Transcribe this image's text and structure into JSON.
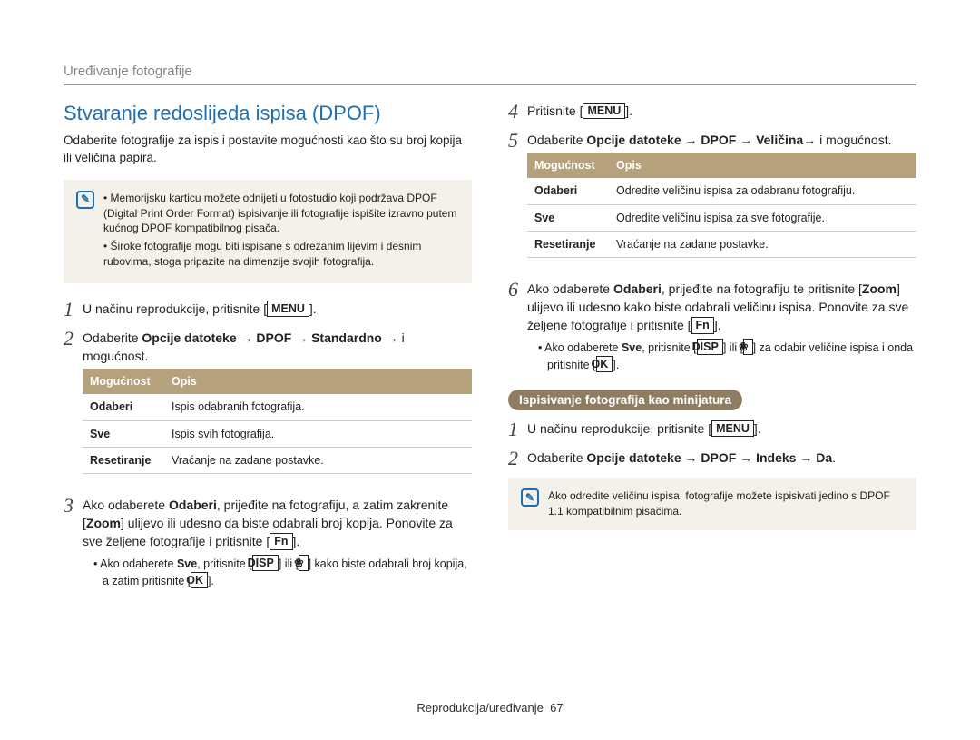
{
  "breadcrumb": "Uređivanje fotografije",
  "title": "Stvaranje redoslijeda ispisa (DPOF)",
  "intro": "Odaberite fotografije za ispis i postavite mogućnosti kao što su broj kopija ili veličina papira.",
  "note1": {
    "items": [
      "Memorijsku karticu možete odnijeti u fotostudio koji podržava DPOF (Digital Print Order Format) ispisivanje ili fotografije ispišite izravno putem kućnog DPOF kompatibilnog pisača.",
      "Široke fotografije mogu biti ispisane s odrezanim lijevim i desnim rubovima, stoga pripazite na dimenzije svojih fotografija."
    ]
  },
  "labels": {
    "menu": "MENU",
    "fn": "Fn",
    "disp": "DISP",
    "ok": "OK",
    "flower": "❀"
  },
  "table_headers": {
    "col1": "Mogućnost",
    "col2": "Opis"
  },
  "left": {
    "step1_a": "U načinu reprodukcije, pritisnite [",
    "step1_b": "].",
    "step2_a": "Odaberite ",
    "step2_bold": "Opcije datoteke → DPOF → Standardno →",
    "step2_b": " i mogućnost.",
    "table": {
      "rows": [
        [
          "Odaberi",
          "Ispis odabranih fotografija."
        ],
        [
          "Sve",
          "Ispis svih fotografija."
        ],
        [
          "Resetiranje",
          "Vraćanje na zadane postavke."
        ]
      ]
    },
    "step3_a": "Ako odaberete ",
    "step3_b1": "Odaberi",
    "step3_c": ", prijeđite na fotografiju, a zatim zakrenite [",
    "step3_b2": "Zoom",
    "step3_d": "] ulijevo ili udesno da biste odabrali broj kopija. Ponovite za sve željene fotografije i pritisnite [",
    "step3_e": "].",
    "step3_sub_a": "Ako odaberete ",
    "step3_sub_b": "Sve",
    "step3_sub_c": ", pritisnite [",
    "step3_sub_d": "] ili [",
    "step3_sub_e": "] kako biste odabrali broj kopija, a zatim pritisnite [",
    "step3_sub_f": "]."
  },
  "right": {
    "step4_a": "Pritisnite [",
    "step4_b": "].",
    "step5_a": "Odaberite ",
    "step5_bold": "Opcije datoteke → DPOF → Veličina→",
    "step5_b": " i mogućnost.",
    "table": {
      "rows": [
        [
          "Odaberi",
          "Odredite veličinu ispisa za odabranu fotografiju."
        ],
        [
          "Sve",
          "Odredite veličinu ispisa za sve fotografije."
        ],
        [
          "Resetiranje",
          "Vraćanje na zadane postavke."
        ]
      ]
    },
    "step6_a": "Ako odaberete ",
    "step6_b1": "Odaberi",
    "step6_c": ", prijeđite na fotografiju te pritisnite [",
    "step6_b2": "Zoom",
    "step6_d": "] ulijevo ili udesno kako biste odabrali veličinu ispisa. Ponovite za sve željene fotografije i pritisnite [",
    "step6_e": "].",
    "step6_sub_a": "Ako odaberete ",
    "step6_sub_b": "Sve",
    "step6_sub_c": ", pritisnite [",
    "step6_sub_d": "] ili [",
    "step6_sub_e": "] za odabir veličine ispisa i onda pritisnite [",
    "step6_sub_f": "].",
    "pill": "Ispisivanje fotografija kao minijatura",
    "step1b_a": "U načinu reprodukcije, pritisnite [",
    "step1b_b": "].",
    "step2b_a": "Odaberite ",
    "step2b_bold": "Opcije datoteke → DPOF → Indeks → Da",
    "step2b_b": ".",
    "note2": "Ako odredite veličinu ispisa, fotografije možete ispisivati jedino s DPOF 1.1 kompatibilnim pisačima."
  },
  "footer_a": "Reprodukcija/uređivanje",
  "footer_b": "67"
}
